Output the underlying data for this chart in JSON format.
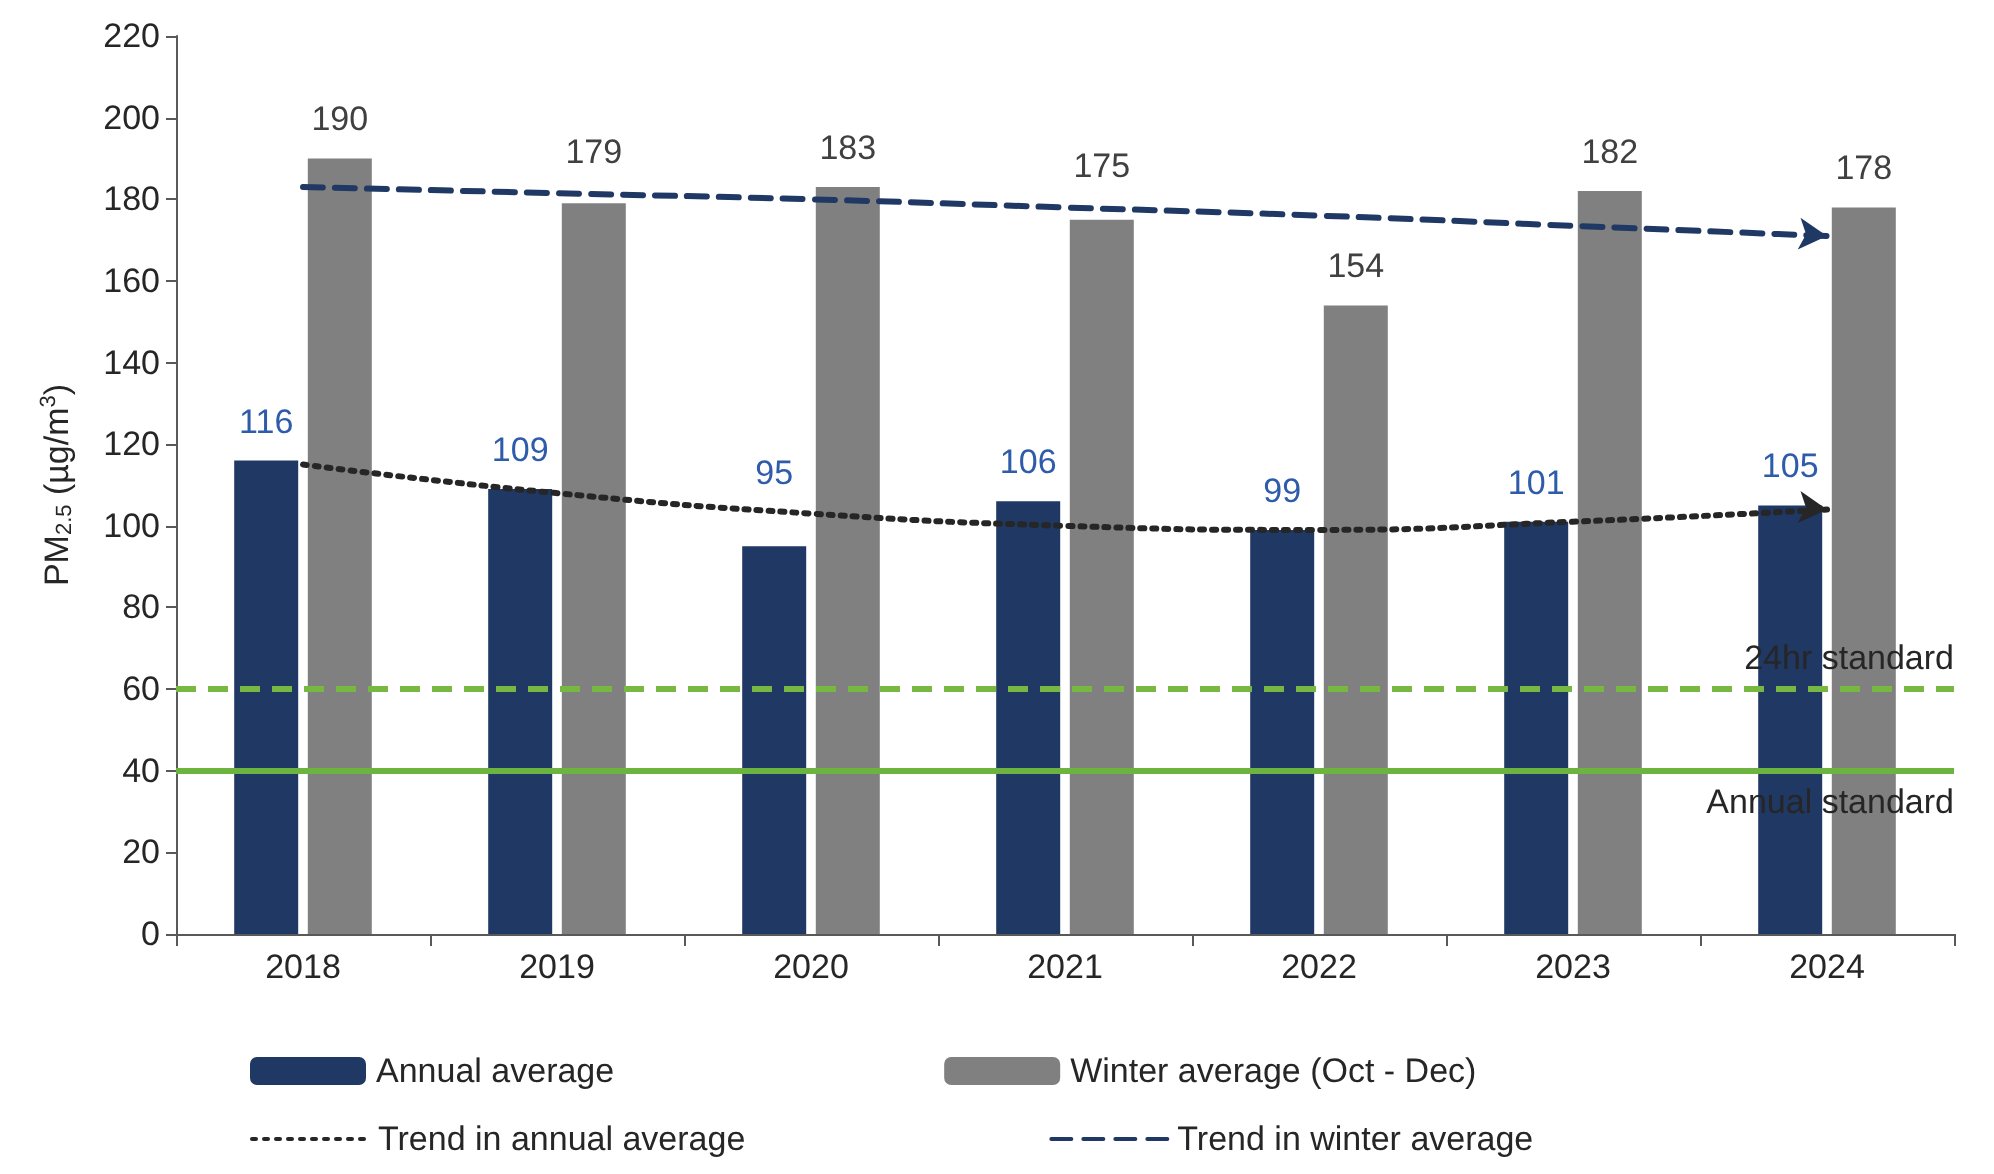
{
  "chart_data": {
    "type": "bar",
    "ylabel": "PM$_{2.5}$ (µg/m$^{3}$)",
    "categories": [
      "2018",
      "2019",
      "2020",
      "2021",
      "2022",
      "2023",
      "2024"
    ],
    "series": [
      {
        "name": "Annual average",
        "color": "#1f3864",
        "values": [
          116,
          109,
          95,
          106,
          99,
          101,
          105
        ],
        "value_labels": [
          "116",
          "109",
          "95",
          "106",
          "99",
          "101",
          "105"
        ]
      },
      {
        "name": "Winter average (Oct - Dec)",
        "color": "#808080",
        "values": [
          190,
          179,
          183,
          175,
          154,
          182,
          178
        ],
        "value_labels": [
          "190",
          "179",
          "183",
          "175",
          "154",
          "182",
          "178"
        ]
      },
      {
        "name": "Trend in annual average",
        "type": "line",
        "color": "#262626",
        "line_style": "dotted",
        "values": [
          115,
          108,
          103,
          100,
          99,
          101,
          104
        ]
      },
      {
        "name": "Trend in winter average",
        "type": "line",
        "color": "#1f3864",
        "line_style": "dashed",
        "values": [
          183,
          181.5,
          180,
          178,
          176,
          173.5,
          171
        ]
      }
    ],
    "ylim": [
      0,
      220
    ],
    "yticks": [
      0,
      20,
      40,
      60,
      80,
      100,
      120,
      140,
      160,
      180,
      200,
      220
    ],
    "ref_lines": [
      {
        "axis": "y",
        "value": 60,
        "label": "24hr standard",
        "color": "#77b843",
        "line_style": "dashed"
      },
      {
        "axis": "y",
        "value": 40,
        "label": "Annual standard",
        "color": "#6db33f",
        "line_style": "solid"
      }
    ],
    "grid": false,
    "legend": "bottom"
  }
}
